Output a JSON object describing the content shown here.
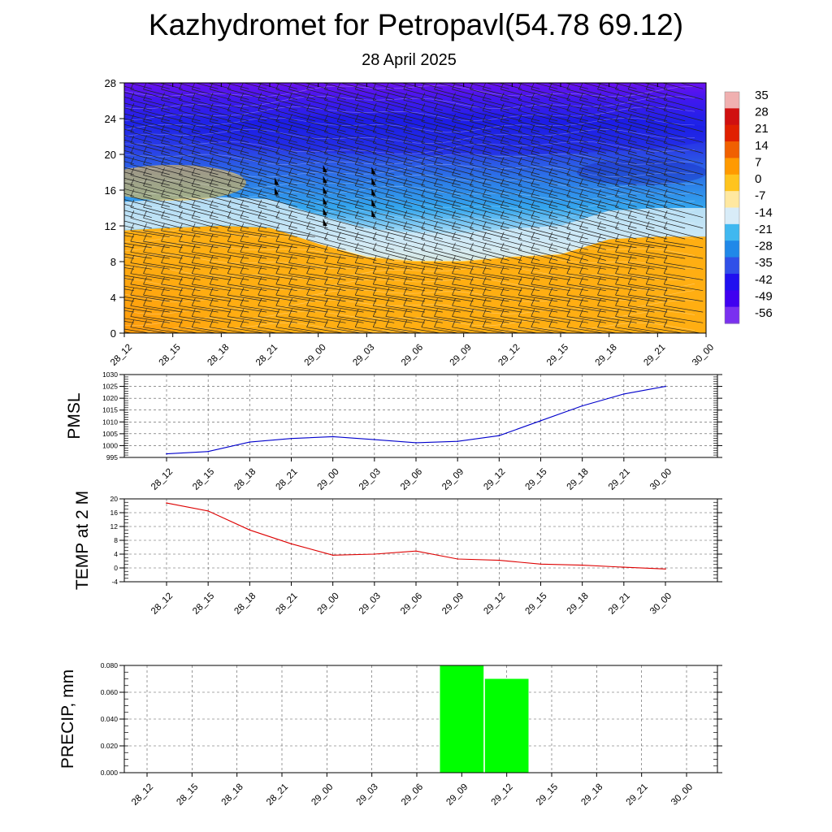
{
  "header": {
    "title": "Kazhydromet for Petropavl(54.78 69.12)",
    "date": "28 April 2025"
  },
  "colors": {
    "pmsl_line": "#0000cc",
    "temp_line": "#dd0000",
    "precip_bar": "#00ff00"
  },
  "chart_data": [
    {
      "type": "heatmap",
      "name": "cross-section",
      "x": [
        "28_12",
        "28_15",
        "28_18",
        "28_21",
        "29_00",
        "29_03",
        "29_06",
        "29_09",
        "29_12",
        "29_15",
        "29_18",
        "29_21",
        "30_00"
      ],
      "ylim": [
        0,
        28
      ],
      "yticks": [
        0,
        4,
        8,
        12,
        16,
        20,
        24,
        28
      ],
      "colorbar": {
        "labels": [
          "35",
          "28",
          "21",
          "14",
          "7",
          "0",
          "-7",
          "-14",
          "-21",
          "-28",
          "-35",
          "-42",
          "-49",
          "-56"
        ],
        "stops": [
          "#f0b0b0",
          "#d01010",
          "#e02000",
          "#f06000",
          "#ff9a00",
          "#ffc41e",
          "#ffe8a0",
          "#d8ecf8",
          "#40b8f0",
          "#2088e8",
          "#3050e8",
          "#2010f0",
          "#4000f0",
          "#7a30f0"
        ]
      },
      "freezing_level": [
        11.5,
        11.8,
        12.0,
        11.8,
        10.0,
        8.5,
        8.0,
        8.0,
        8.5,
        8.8,
        10.5,
        10.8,
        10.8
      ],
      "strong_wind_flags": [
        {
          "x": "28_21",
          "levels": [
            15.5,
            16.6
          ]
        },
        {
          "x": "29_00",
          "levels": [
            12.0,
            13.2,
            14.4,
            15.6,
            16.8,
            18.0
          ]
        },
        {
          "x": "29_03",
          "levels": [
            13.0,
            14.2,
            15.4,
            16.6,
            17.8
          ]
        }
      ]
    },
    {
      "type": "line",
      "name": "pmsl",
      "ylabel": "PMSL",
      "x": [
        "28_12",
        "28_15",
        "28_18",
        "28_21",
        "29_00",
        "29_03",
        "29_06",
        "29_09",
        "29_12",
        "29_15",
        "29_18",
        "29_21",
        "30_00"
      ],
      "values": [
        996.5,
        997.5,
        1001.5,
        1003.0,
        1003.8,
        1002.5,
        1001.2,
        1001.8,
        1004.2,
        1010.5,
        1016.8,
        1021.8,
        1025.0
      ],
      "ylim": [
        995,
        1030
      ],
      "yticks": [
        995,
        1000,
        1005,
        1010,
        1015,
        1020,
        1025,
        1030
      ],
      "grid": true
    },
    {
      "type": "line",
      "name": "temp",
      "ylabel": "TEMP at 2 M",
      "x": [
        "28_12",
        "28_15",
        "28_18",
        "28_21",
        "29_00",
        "29_03",
        "29_06",
        "29_09",
        "29_12",
        "29_15",
        "29_18",
        "29_21",
        "30_00"
      ],
      "values": [
        18.8,
        16.5,
        11.0,
        7.0,
        3.7,
        4.0,
        4.9,
        2.6,
        2.2,
        1.1,
        0.8,
        0.2,
        -0.3
      ],
      "ylim": [
        -4,
        20
      ],
      "yticks": [
        -4,
        0,
        4,
        8,
        12,
        16,
        20
      ],
      "grid": true
    },
    {
      "type": "bar",
      "name": "precip",
      "ylabel": "PRECIP, mm",
      "x": [
        "28_12",
        "28_15",
        "28_18",
        "28_21",
        "29_00",
        "29_03",
        "29_06",
        "29_09",
        "29_12",
        "29_15",
        "29_18",
        "29_21",
        "30_00"
      ],
      "values": [
        0,
        0,
        0,
        0,
        0,
        0,
        0,
        0.08,
        0.07,
        0,
        0,
        0,
        0
      ],
      "ylim": [
        0,
        0.08
      ],
      "yticks": [
        "0.000",
        "0.020",
        "0.040",
        "0.060",
        "0.080"
      ],
      "grid": true
    }
  ]
}
